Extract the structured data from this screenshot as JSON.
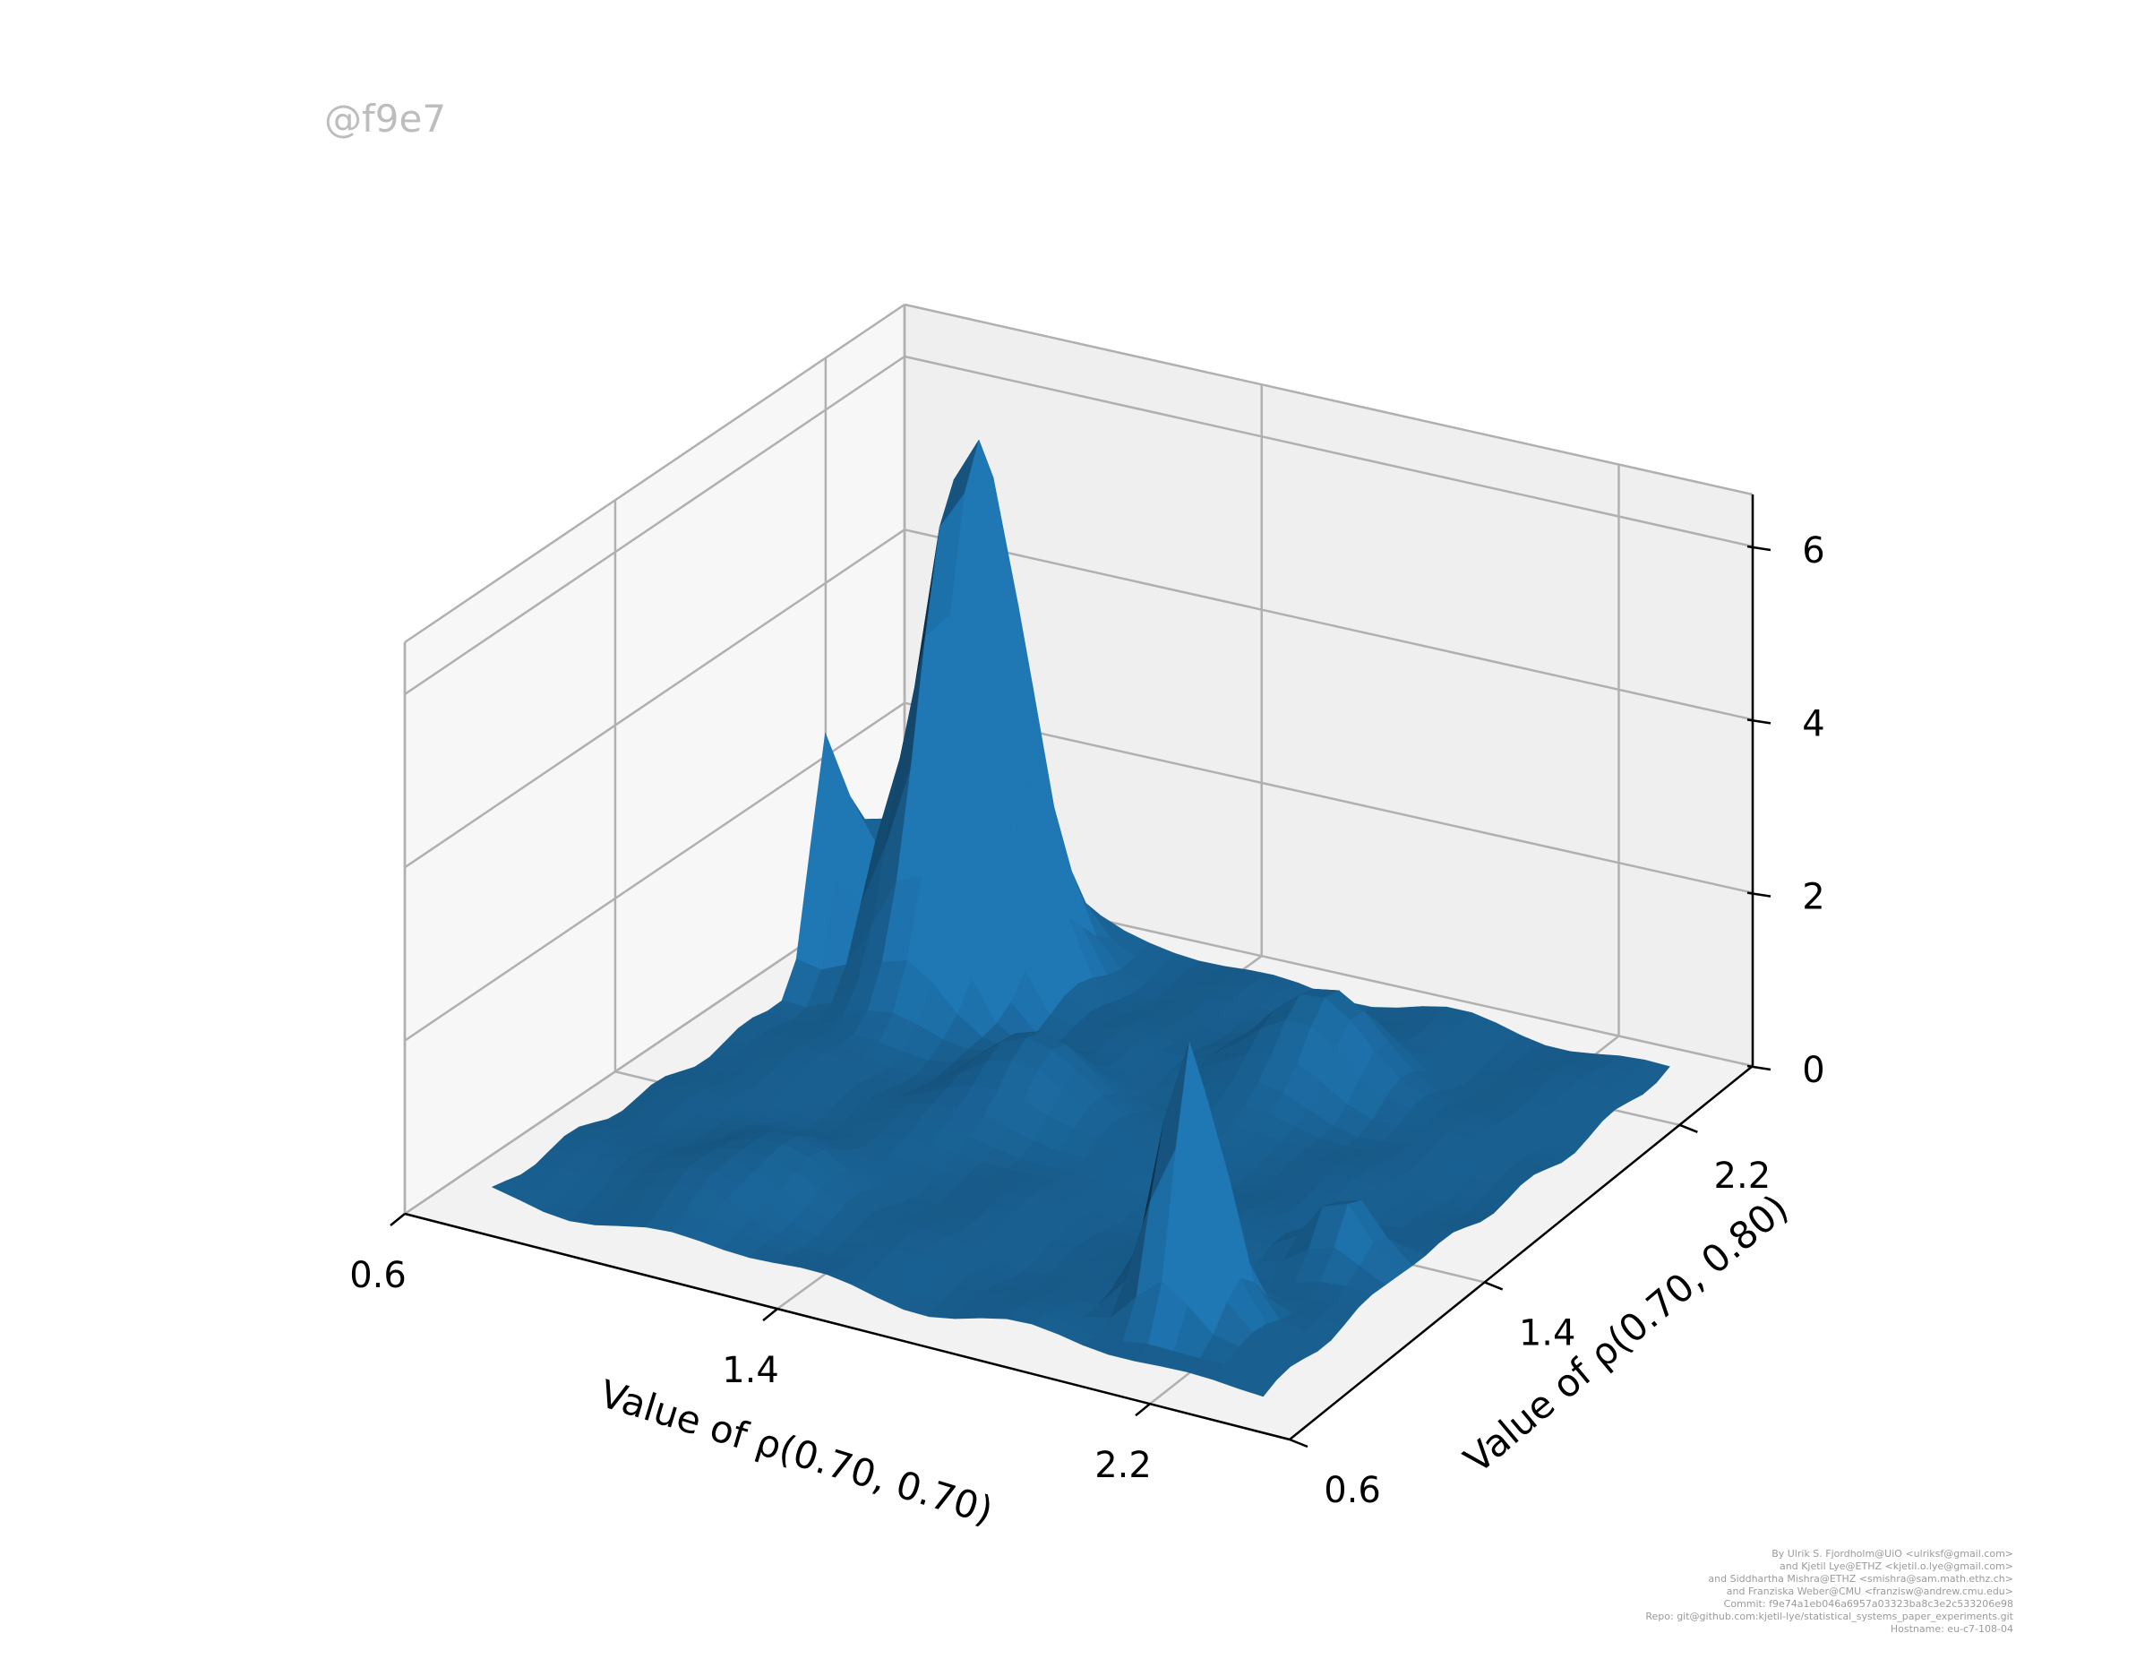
{
  "watermark": "@f9e7",
  "credits": [
    "By Ulrik S. Fjordholm@UiO <ulriksf@gmail.com>",
    "and Kjetil Lye@ETHZ <kjetil.o.lye@gmail.com>",
    "and Siddhartha Mishra@ETHZ <smishra@sam.math.ethz.ch>",
    "and Franziska Weber@CMU <franzisw@andrew.cmu.edu>",
    "Commit: f9e74a1eb046a6957a03323ba8c3e2c533206e98",
    "Repo: git@github.com:kjetil-lye/statistical_systems_paper_experiments.git",
    "Hostname: eu-c7-108-04"
  ],
  "chart_data": {
    "type": "surface3d",
    "xlabel": "Value of $\\rho(0.70, 0.70)$",
    "ylabel": "Value of $\\rho(0.70, 0.80)$",
    "xlabel_text": "Value of ρ(0.70, 0.70)",
    "ylabel_text": "Value of ρ(0.70, 0.80)",
    "xlim": [
      0.6,
      2.5
    ],
    "ylim": [
      0.6,
      2.5
    ],
    "zlim": [
      0,
      6.6
    ],
    "x_ticks": [
      0.6,
      1.4,
      2.2
    ],
    "y_ticks": [
      0.6,
      1.4,
      2.2
    ],
    "z_ticks": [
      0,
      2,
      4,
      6
    ],
    "x_tick_labels": [
      "0.6",
      "1.4",
      "2.2"
    ],
    "y_tick_labels": [
      "0.6",
      "1.4",
      "2.2"
    ],
    "z_tick_labels": [
      "0",
      "2",
      "4",
      "6"
    ],
    "surface_color": "#1f77b4",
    "grid": true,
    "peaks": [
      {
        "x": 0.98,
        "y": 2.1,
        "z": 6.3,
        "sx": 0.09,
        "sy": 0.13
      },
      {
        "x": 2.1,
        "y": 0.95,
        "z": 3.2,
        "sx": 0.06,
        "sy": 0.07
      },
      {
        "x": 0.72,
        "y": 2.0,
        "z": 2.6,
        "sx": 0.06,
        "sy": 0.06
      },
      {
        "x": 1.8,
        "y": 2.0,
        "z": 1.0,
        "sx": 0.12,
        "sy": 0.1
      },
      {
        "x": 1.4,
        "y": 1.6,
        "z": 0.8,
        "sx": 0.12,
        "sy": 0.12
      },
      {
        "x": 2.25,
        "y": 1.3,
        "z": 0.9,
        "sx": 0.06,
        "sy": 0.06
      },
      {
        "x": 1.1,
        "y": 1.0,
        "z": 0.5,
        "sx": 0.15,
        "sy": 0.15
      }
    ]
  }
}
